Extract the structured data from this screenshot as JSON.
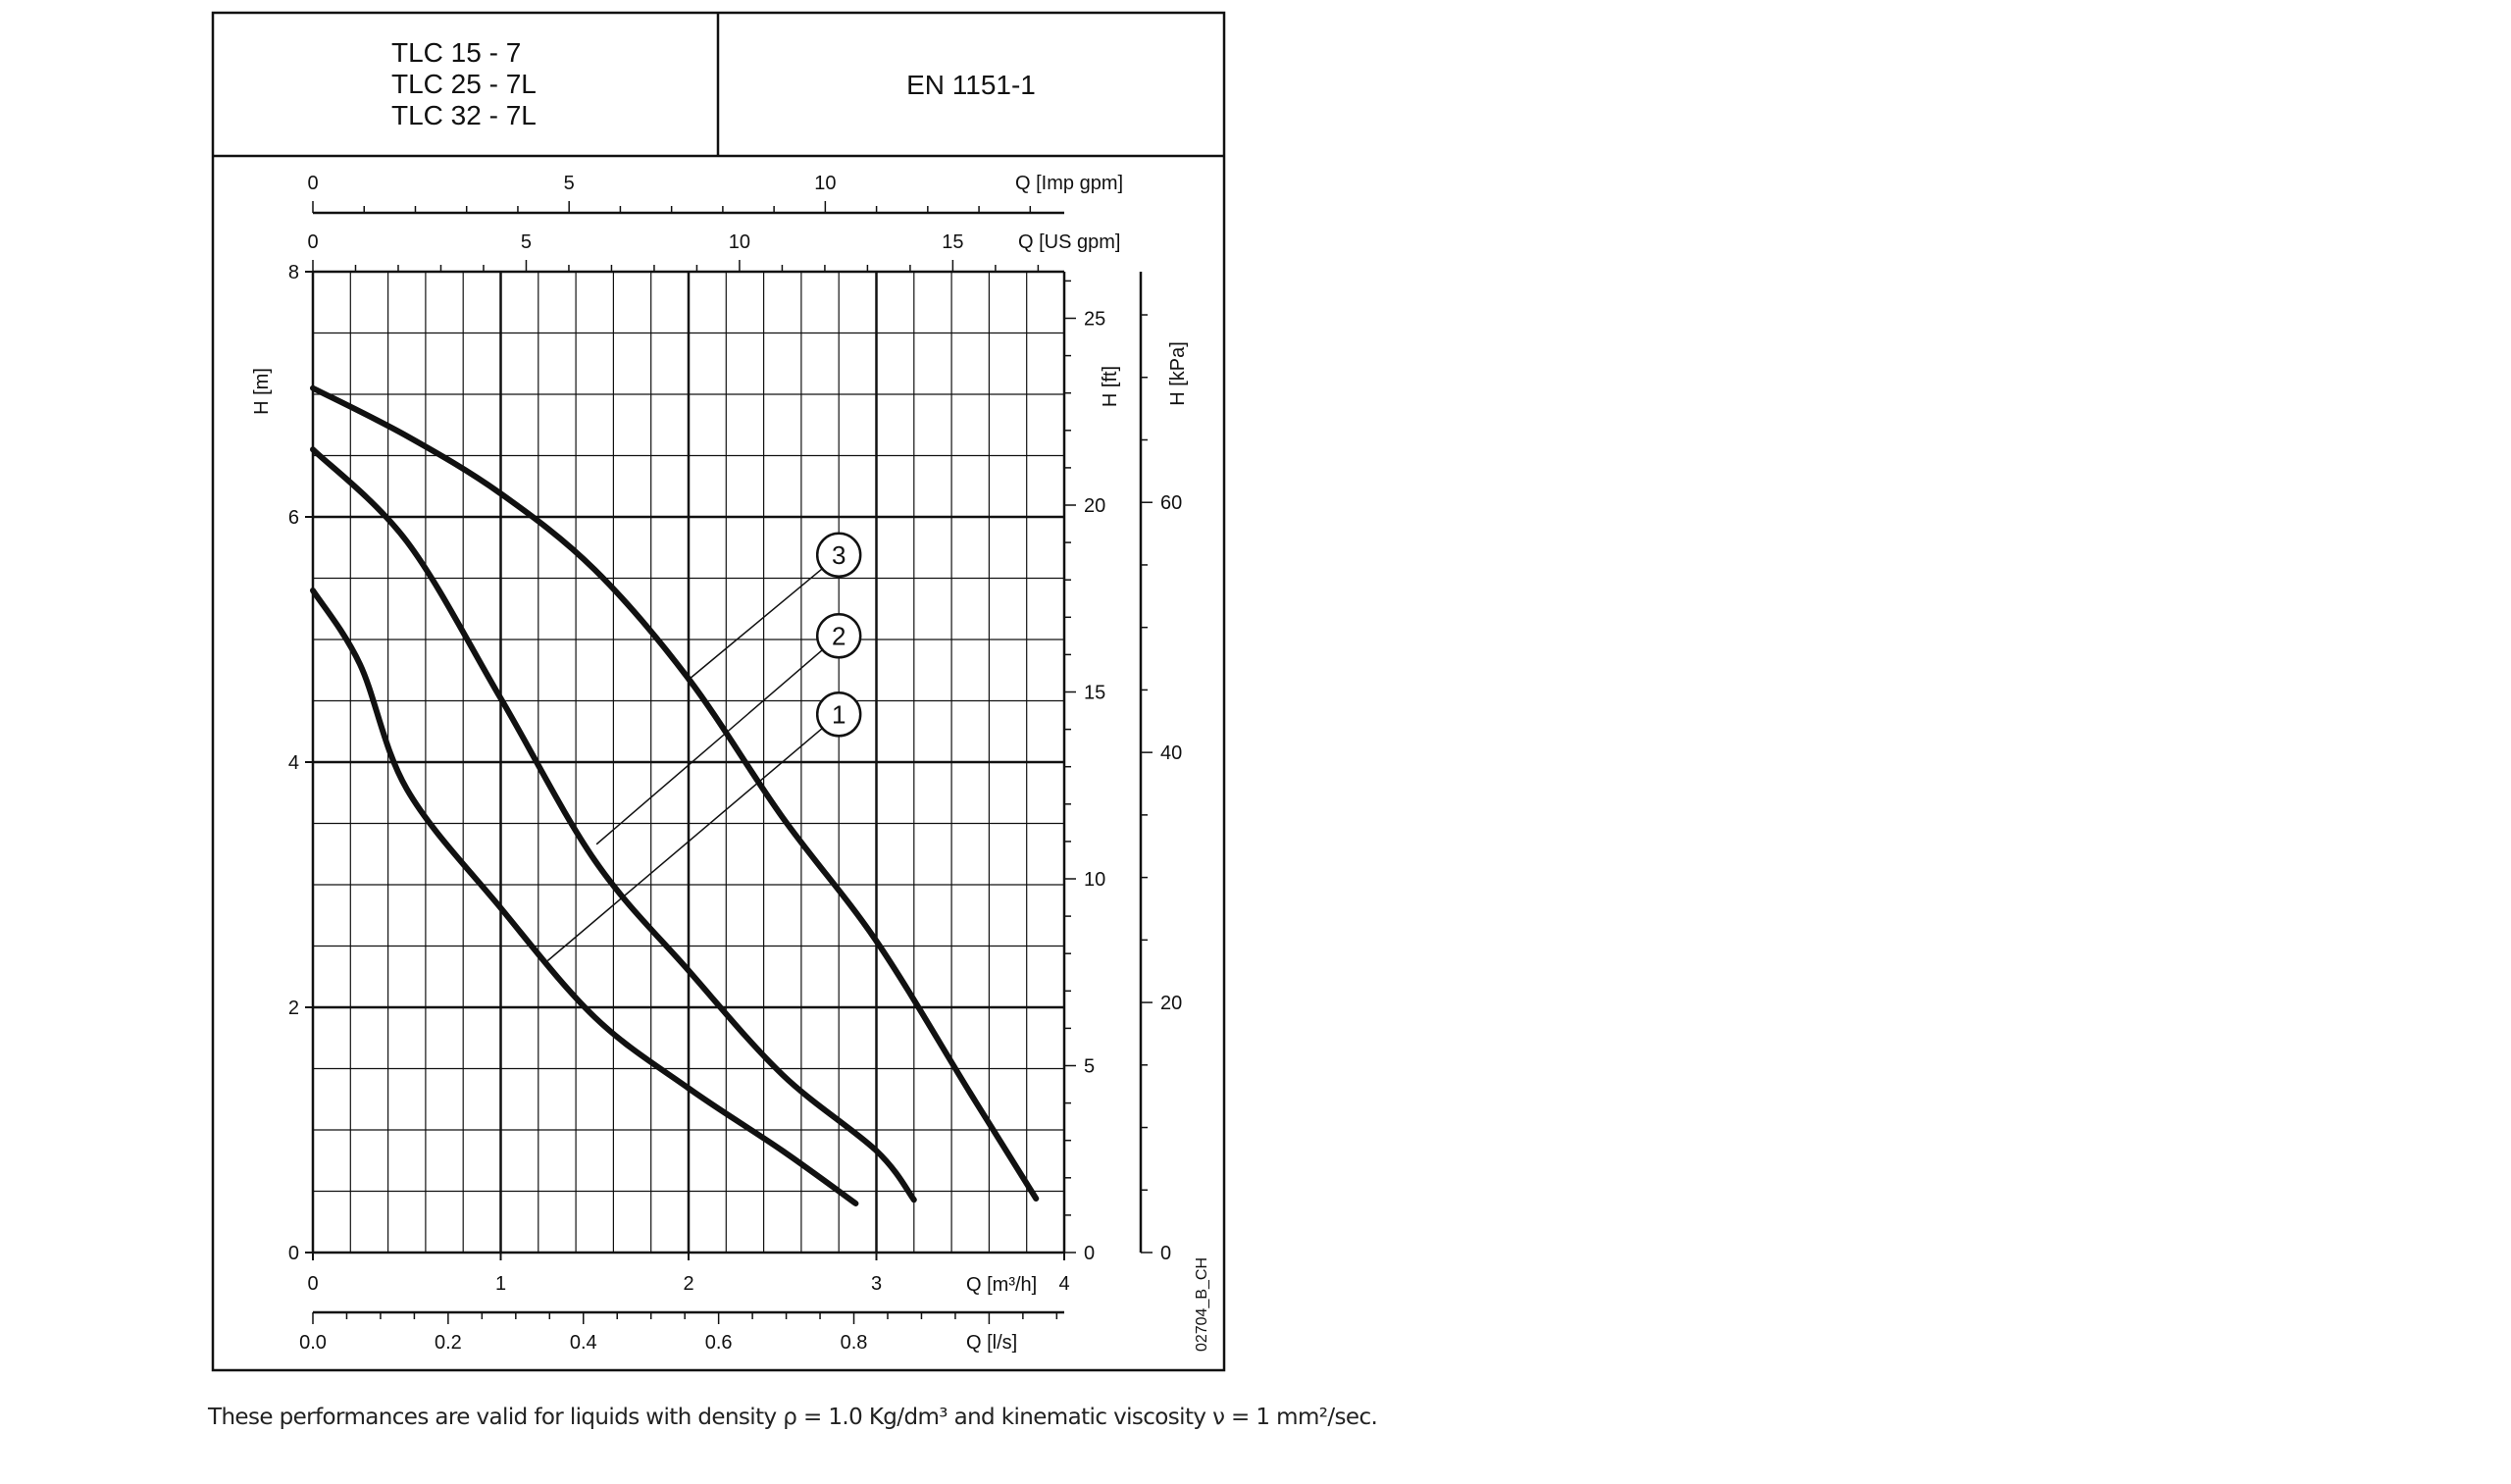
{
  "header": {
    "models": [
      "TLC 15 - 7",
      "TLC 25 - 7L",
      "TLC 32 - 7L"
    ],
    "standard": "EN 1151-1"
  },
  "footnote": "These performances are valid for liquids with density ρ = 1.0 Kg/dm³  and kinematic viscosity ν = 1 mm²/sec.",
  "drawing_code": "02704_B_CH",
  "chart_data": {
    "type": "line",
    "title": "",
    "xlabel": "Q [m³/h]",
    "ylabel": "H [m]",
    "xlim": [
      0,
      4
    ],
    "ylim": [
      0,
      8
    ],
    "grid": true,
    "x_ticks": [
      "0",
      "1",
      "2",
      "3",
      "4"
    ],
    "y_ticks": [
      "0",
      "2",
      "4",
      "6",
      "8"
    ],
    "secondary_axes": {
      "imp_gpm": {
        "label": "Q [Imp gpm]",
        "ticks": [
          "0",
          "5",
          "10"
        ]
      },
      "us_gpm": {
        "label": "Q [US gpm]",
        "ticks": [
          "0",
          "5",
          "10",
          "15"
        ]
      },
      "l_s": {
        "label": "Q [l/s]",
        "ticks": [
          "0.0",
          "0.2",
          "0.4",
          "0.6",
          "0.8"
        ]
      },
      "ft": {
        "label": "H [ft]",
        "ticks": [
          "0",
          "5",
          "10",
          "15",
          "20",
          "25"
        ]
      },
      "kpa": {
        "label": "H [kPa]",
        "ticks": [
          "0",
          "20",
          "40",
          "60"
        ]
      }
    },
    "series": [
      {
        "name": "1",
        "x": [
          0,
          0.25,
          0.5,
          1,
          1.5,
          2,
          2.5,
          2.89
        ],
        "y": [
          5.4,
          4.8,
          3.78,
          2.81,
          1.92,
          1.34,
          0.83,
          0.4
        ]
      },
      {
        "name": "2",
        "x": [
          0,
          0.5,
          1,
          1.5,
          2,
          2.5,
          3,
          3.2
        ],
        "y": [
          6.55,
          5.8,
          4.52,
          3.2,
          2.3,
          1.45,
          0.83,
          0.43
        ]
      },
      {
        "name": "3",
        "x": [
          0,
          0.5,
          1,
          1.5,
          2,
          2.5,
          3,
          3.5,
          3.85
        ],
        "y": [
          7.05,
          6.66,
          6.19,
          5.57,
          4.68,
          3.55,
          2.54,
          1.3,
          0.44
        ]
      }
    ],
    "callouts": [
      {
        "label": "1",
        "at": [
          2.8,
          4.39
        ],
        "points_to": [
          1.25,
          2.38
        ]
      },
      {
        "label": "2",
        "at": [
          2.8,
          5.03
        ],
        "points_to": [
          1.51,
          3.33
        ]
      },
      {
        "label": "3",
        "at": [
          2.8,
          5.69
        ],
        "points_to": [
          1.99,
          4.66
        ]
      }
    ]
  }
}
